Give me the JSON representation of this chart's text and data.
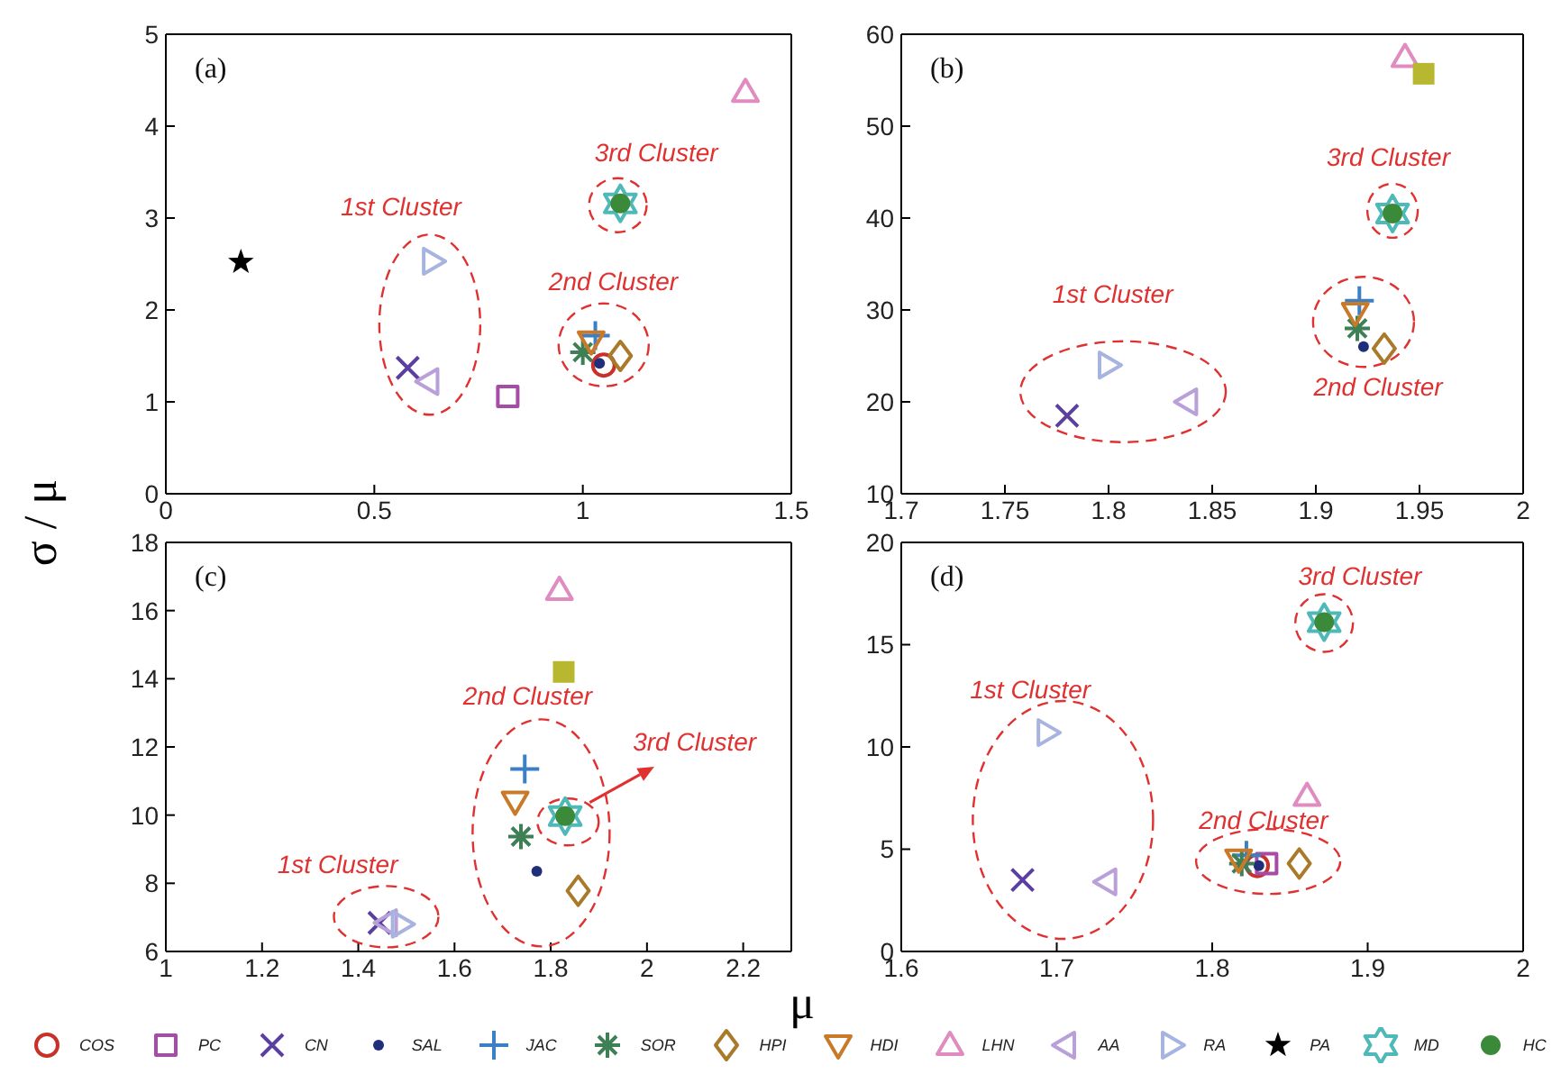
{
  "chart_data": [
    {
      "type": "scatter",
      "title": "(a)",
      "ylabel": "σ / μ",
      "legend": "bottom",
      "xlim": [
        0,
        1.5
      ],
      "xticks": [
        0,
        0.5,
        1,
        1.5
      ],
      "ylim": [
        0,
        5
      ],
      "yticks": [
        0,
        1,
        2,
        3,
        4,
        5
      ],
      "annotations": [
        "1st Cluster",
        "2nd Cluster",
        "3rd Cluster"
      ],
      "series": [
        {
          "name": "COS",
          "color": "#c8312a",
          "marker": "circle",
          "x": [
            1.05
          ],
          "values": [
            1.4
          ]
        },
        {
          "name": "PC",
          "color": "#a64ca6",
          "marker": "square",
          "x": [
            0.82
          ],
          "values": [
            1.06
          ]
        },
        {
          "name": "CN",
          "color": "#5b3fa0",
          "marker": "cross",
          "x": [
            0.58
          ],
          "values": [
            1.37
          ]
        },
        {
          "name": "SAL",
          "color": "#1f2f7a",
          "marker": "circle",
          "x": [
            1.04
          ],
          "values": [
            1.42
          ]
        },
        {
          "name": "JAC",
          "color": "#3b7fc4",
          "marker": "cross",
          "x": [
            1.03
          ],
          "values": [
            1.72
          ]
        },
        {
          "name": "SOR",
          "color": "#3f7f55",
          "marker": "cross",
          "x": [
            1.0
          ],
          "values": [
            1.54
          ]
        },
        {
          "name": "HPI",
          "color": "#a87a2a",
          "marker": "diamond",
          "x": [
            1.09
          ],
          "values": [
            1.5
          ]
        },
        {
          "name": "HDI",
          "color": "#c97a28",
          "marker": "triangle",
          "x": [
            1.02
          ],
          "values": [
            1.66
          ]
        },
        {
          "name": "LHN",
          "color": "#e08cc0",
          "marker": "triangle",
          "x": [
            1.39
          ],
          "values": [
            4.37
          ]
        },
        {
          "name": "AA",
          "color": "#b9a0d8",
          "marker": "triangle",
          "x": [
            0.63
          ],
          "values": [
            1.22
          ]
        },
        {
          "name": "RA",
          "color": "#a8b4e0",
          "marker": "triangle",
          "x": [
            0.64
          ],
          "values": [
            2.53
          ]
        },
        {
          "name": "PA",
          "color": "#000000",
          "marker": "star",
          "x": [
            0.18
          ],
          "values": [
            2.52
          ]
        },
        {
          "name": "MD",
          "color": "#4fb8b8",
          "marker": "cross",
          "x": [
            1.09
          ],
          "values": [
            3.16
          ]
        },
        {
          "name": "HC",
          "color": "#3a8a3a",
          "marker": "circle",
          "x": [
            1.09
          ],
          "values": [
            3.16
          ]
        }
      ]
    },
    {
      "type": "scatter",
      "title": "(b)",
      "xlim": [
        1.7,
        2
      ],
      "xticks": [
        1.7,
        1.75,
        1.8,
        1.85,
        1.9,
        1.95,
        2
      ],
      "ylim": [
        10,
        60
      ],
      "yticks": [
        10,
        20,
        30,
        40,
        50,
        60
      ],
      "annotations": [
        "1st Cluster",
        "2nd Cluster",
        "3rd Cluster"
      ],
      "series": [
        {
          "color": "#5b3fa0",
          "marker": "cross",
          "x": [
            1.78
          ],
          "values": [
            18.5
          ]
        },
        {
          "color": "#1f2f7a",
          "marker": "circle",
          "x": [
            1.923
          ],
          "values": [
            26
          ]
        },
        {
          "color": "#3b7fc4",
          "marker": "cross",
          "x": [
            1.921
          ],
          "values": [
            31
          ]
        },
        {
          "color": "#3f7f55",
          "marker": "cross",
          "x": [
            1.92
          ],
          "values": [
            28
          ]
        },
        {
          "color": "#a87a2a",
          "marker": "diamond",
          "x": [
            1.933
          ],
          "values": [
            25.8
          ]
        },
        {
          "color": "#c97a28",
          "marker": "triangle",
          "x": [
            1.919
          ],
          "values": [
            29.7
          ]
        },
        {
          "color": "#e08cc0",
          "marker": "triangle",
          "x": [
            1.943
          ],
          "values": [
            57.5
          ]
        },
        {
          "color": "#b9a0d8",
          "marker": "triangle",
          "x": [
            1.838
          ],
          "values": [
            20
          ]
        },
        {
          "color": "#a8b4e0",
          "marker": "triangle",
          "x": [
            1.8
          ],
          "values": [
            24
          ]
        },
        {
          "color": "#4fb8b8",
          "marker": "cross",
          "x": [
            1.937
          ],
          "values": [
            40.5
          ]
        },
        {
          "color": "#3a8a3a",
          "marker": "circle",
          "x": [
            1.937
          ],
          "values": [
            40.5
          ]
        },
        {
          "color": "#b8b830",
          "marker": "square",
          "x": [
            1.952
          ],
          "values": [
            55.7
          ]
        }
      ]
    },
    {
      "type": "scatter",
      "title": "(c)",
      "xlabel": "μ",
      "xlim": [
        1,
        2.3
      ],
      "xticks": [
        1,
        1.2,
        1.4,
        1.6,
        1.8,
        2,
        2.2
      ],
      "ylim": [
        6,
        18
      ],
      "yticks": [
        6,
        8,
        10,
        12,
        14,
        16,
        18
      ],
      "annotations": [
        "1st Cluster",
        "2nd Cluster",
        "3rd Cluster"
      ],
      "series": [
        {
          "color": "#5b3fa0",
          "marker": "cross",
          "x": [
            1.444
          ],
          "values": [
            6.84
          ]
        },
        {
          "color": "#1f2f7a",
          "marker": "circle",
          "x": [
            1.771
          ],
          "values": [
            8.35
          ]
        },
        {
          "color": "#3b7fc4",
          "marker": "cross",
          "x": [
            1.746
          ],
          "values": [
            11.35
          ]
        },
        {
          "color": "#3f7f55",
          "marker": "cross",
          "x": [
            1.738
          ],
          "values": [
            9.37
          ]
        },
        {
          "color": "#a87a2a",
          "marker": "diamond",
          "x": [
            1.857
          ],
          "values": [
            7.78
          ]
        },
        {
          "color": "#c97a28",
          "marker": "triangle",
          "x": [
            1.726
          ],
          "values": [
            10.4
          ]
        },
        {
          "color": "#e08cc0",
          "marker": "triangle",
          "x": [
            1.818
          ],
          "values": [
            16.6
          ]
        },
        {
          "color": "#b9a0d8",
          "marker": "triangle",
          "x": [
            1.46
          ],
          "values": [
            6.84
          ]
        },
        {
          "color": "#a8b4e0",
          "marker": "triangle",
          "x": [
            1.49
          ],
          "values": [
            6.8
          ]
        },
        {
          "color": "#4fb8b8",
          "marker": "cross",
          "x": [
            1.83
          ],
          "values": [
            9.97
          ]
        },
        {
          "color": "#3a8a3a",
          "marker": "circle",
          "x": [
            1.83
          ],
          "values": [
            9.97
          ]
        },
        {
          "color": "#b8b830",
          "marker": "square",
          "x": [
            1.827
          ],
          "values": [
            14.2
          ]
        }
      ]
    },
    {
      "type": "scatter",
      "title": "(d)",
      "xlim": [
        1.6,
        2
      ],
      "xticks": [
        1.6,
        1.7,
        1.8,
        1.9,
        2
      ],
      "ylim": [
        0,
        20
      ],
      "yticks": [
        0,
        5,
        10,
        15,
        20
      ],
      "annotations": [
        "1st Cluster",
        "2nd Cluster",
        "3rd Cluster"
      ],
      "series": [
        {
          "color": "#c8312a",
          "marker": "circle",
          "x": [
            1.829
          ],
          "values": [
            4.2
          ]
        },
        {
          "color": "#a64ca6",
          "marker": "square",
          "x": [
            1.835
          ],
          "values": [
            4.3
          ]
        },
        {
          "color": "#5b3fa0",
          "marker": "cross",
          "x": [
            1.678
          ],
          "values": [
            3.5
          ]
        },
        {
          "color": "#1f2f7a",
          "marker": "circle",
          "x": [
            1.83
          ],
          "values": [
            4.2
          ]
        },
        {
          "color": "#3b7fc4",
          "marker": "cross",
          "x": [
            1.822
          ],
          "values": [
            4.7
          ]
        },
        {
          "color": "#3f7f55",
          "marker": "cross",
          "x": [
            1.819
          ],
          "values": [
            4.3
          ]
        },
        {
          "color": "#a87a2a",
          "marker": "diamond",
          "x": [
            1.856
          ],
          "values": [
            4.3
          ]
        },
        {
          "color": "#c97a28",
          "marker": "triangle",
          "x": [
            1.817
          ],
          "values": [
            4.5
          ]
        },
        {
          "color": "#e08cc0",
          "marker": "triangle",
          "x": [
            1.861
          ],
          "values": [
            7.6
          ]
        },
        {
          "color": "#b9a0d8",
          "marker": "triangle",
          "x": [
            1.732
          ],
          "values": [
            3.4
          ]
        },
        {
          "color": "#a8b4e0",
          "marker": "triangle",
          "x": [
            1.694
          ],
          "values": [
            10.7
          ]
        },
        {
          "color": "#4fb8b8",
          "marker": "cross",
          "x": [
            1.872
          ],
          "values": [
            16.1
          ]
        },
        {
          "color": "#3a8a3a",
          "marker": "circle",
          "x": [
            1.872
          ],
          "values": [
            16.1
          ]
        }
      ]
    }
  ]
}
